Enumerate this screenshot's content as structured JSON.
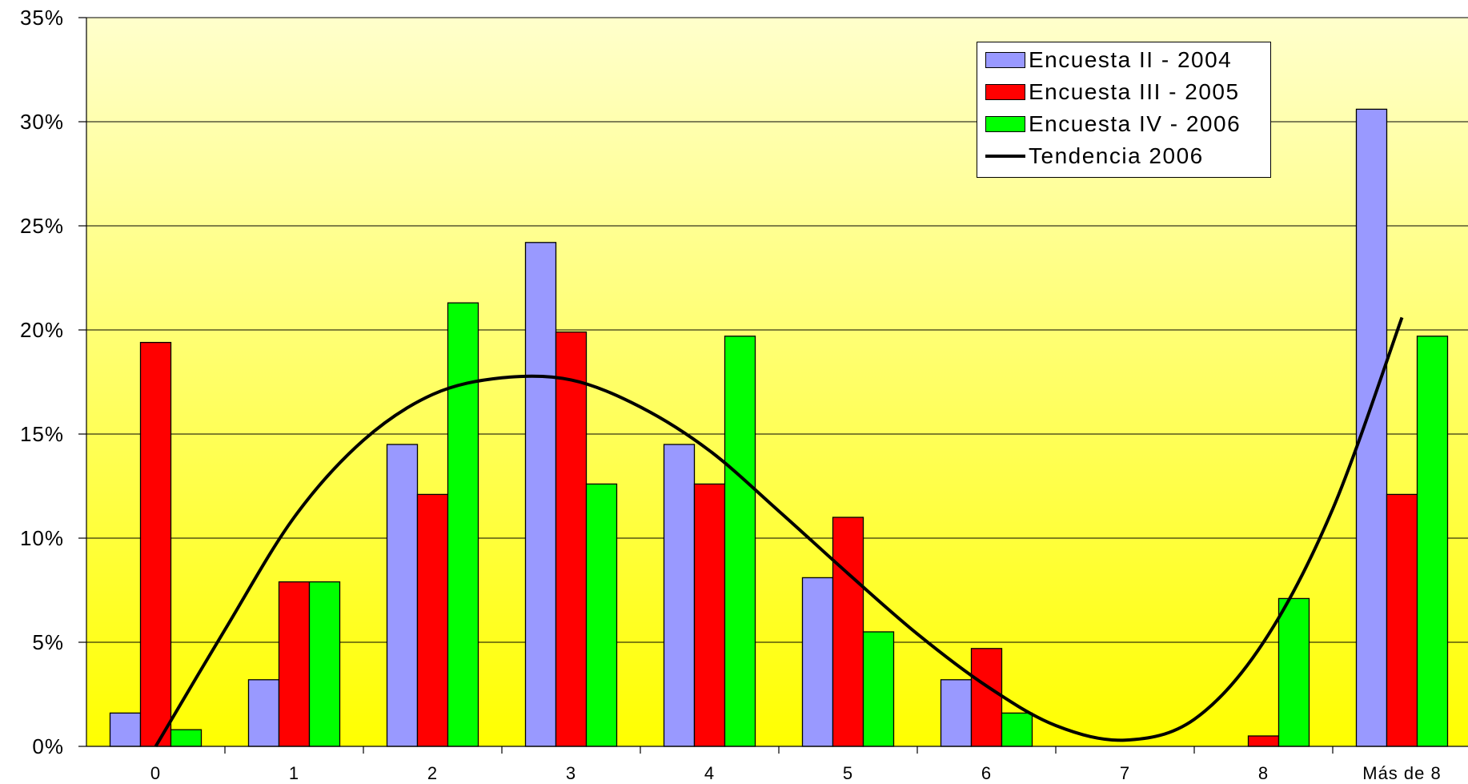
{
  "chart_data": {
    "type": "bar",
    "categories": [
      "0",
      "1",
      "2",
      "3",
      "4",
      "5",
      "6",
      "7",
      "8",
      "Más de 8"
    ],
    "series": [
      {
        "name": "Encuesta II - 2004",
        "color": "#9999ff",
        "values": [
          1.6,
          3.2,
          14.5,
          24.2,
          14.5,
          8.1,
          3.2,
          0,
          0,
          30.6
        ]
      },
      {
        "name": "Encuesta III - 2005",
        "color": "#ff0000",
        "values": [
          19.4,
          7.9,
          12.1,
          19.9,
          12.6,
          11.0,
          4.7,
          0,
          0.5,
          12.1
        ]
      },
      {
        "name": "Encuesta IV - 2006",
        "color": "#00ff00",
        "values": [
          0.8,
          7.9,
          21.3,
          12.6,
          19.7,
          5.5,
          1.6,
          0,
          7.1,
          19.7
        ]
      }
    ],
    "trendline": {
      "name": "Tendencia 2006",
      "color": "#000000",
      "x": [
        0,
        0.5,
        1,
        1.5,
        2,
        2.5,
        3,
        3.5,
        4,
        4.5,
        5,
        5.5,
        6,
        6.5,
        7,
        7.5,
        8,
        8.5,
        9
      ],
      "values": [
        0.0,
        5.6,
        11.0,
        14.7,
        16.9,
        17.7,
        17.6,
        16.3,
        14.2,
        11.3,
        8.3,
        5.4,
        2.9,
        1.0,
        0.3,
        1.3,
        5.0,
        11.4,
        20.6
      ]
    },
    "ylim": [
      0,
      35
    ],
    "yticks": [
      "0%",
      "5%",
      "10%",
      "15%",
      "20%",
      "25%",
      "30%",
      "35%"
    ],
    "grid": true,
    "legend": "top-right",
    "colors": {
      "plot_top": "#ffff00",
      "plot_bottom": "#ffffcc",
      "gridline": "#000000"
    }
  }
}
